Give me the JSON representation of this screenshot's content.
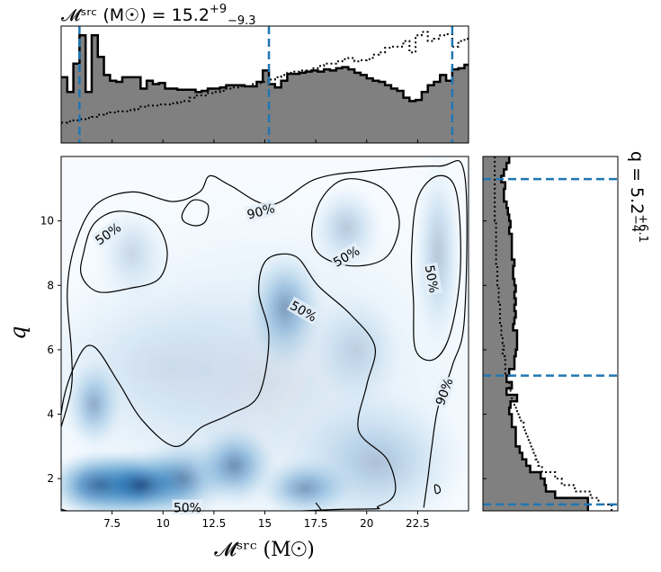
{
  "chart_data": [
    {
      "panel": "top-marginal",
      "type": "area",
      "title_text": "𝓜ˢʳᶜ (M☉) = 15.2",
      "title_sup": "+9",
      "title_sub": "−9.3",
      "xlim": [
        5.0,
        25.0
      ],
      "x_edges": [
        5.0,
        5.3,
        5.6,
        5.9,
        6.2,
        6.5,
        6.8,
        7.1,
        7.4,
        7.7,
        8.0,
        8.3,
        8.6,
        8.9,
        9.2,
        9.5,
        9.8,
        10.1,
        10.4,
        10.7,
        11.0,
        11.3,
        11.6,
        11.9,
        12.2,
        12.5,
        12.8,
        13.1,
        13.4,
        13.7,
        14.0,
        14.3,
        14.6,
        14.9,
        15.2,
        15.5,
        15.8,
        16.1,
        16.4,
        16.7,
        17.0,
        17.3,
        17.6,
        17.9,
        18.2,
        18.5,
        18.8,
        19.1,
        19.4,
        19.7,
        20.0,
        20.3,
        20.6,
        20.9,
        21.2,
        21.5,
        21.8,
        22.1,
        22.4,
        22.7,
        23.0,
        23.3,
        23.6,
        23.9,
        24.2,
        24.5,
        24.8,
        25.0
      ],
      "posterior": [
        0.58,
        0.45,
        0.7,
        0.95,
        0.45,
        0.95,
        0.76,
        0.6,
        0.55,
        0.54,
        0.58,
        0.58,
        0.58,
        0.48,
        0.55,
        0.52,
        0.53,
        0.48,
        0.48,
        0.47,
        0.47,
        0.47,
        0.45,
        0.46,
        0.48,
        0.48,
        0.49,
        0.51,
        0.51,
        0.51,
        0.5,
        0.5,
        0.54,
        0.64,
        0.52,
        0.49,
        0.55,
        0.61,
        0.61,
        0.62,
        0.63,
        0.64,
        0.63,
        0.65,
        0.64,
        0.66,
        0.67,
        0.65,
        0.62,
        0.6,
        0.57,
        0.55,
        0.54,
        0.51,
        0.48,
        0.46,
        0.4,
        0.37,
        0.38,
        0.45,
        0.51,
        0.54,
        0.6,
        0.55,
        0.65,
        0.66,
        0.69
      ],
      "prior": [
        0.18,
        0.19,
        0.2,
        0.21,
        0.22,
        0.23,
        0.25,
        0.26,
        0.27,
        0.28,
        0.28,
        0.29,
        0.3,
        0.32,
        0.33,
        0.33,
        0.34,
        0.34,
        0.35,
        0.36,
        0.37,
        0.4,
        0.42,
        0.42,
        0.44,
        0.45,
        0.46,
        0.48,
        0.49,
        0.5,
        0.5,
        0.52,
        0.53,
        0.54,
        0.56,
        0.58,
        0.6,
        0.62,
        0.63,
        0.64,
        0.64,
        0.66,
        0.68,
        0.7,
        0.7,
        0.72,
        0.74,
        0.75,
        0.72,
        0.73,
        0.74,
        0.78,
        0.8,
        0.84,
        0.85,
        0.85,
        0.9,
        0.8,
        0.95,
        0.98,
        0.9,
        0.92,
        0.95,
        0.96,
        0.85,
        0.9,
        0.92
      ],
      "quantile_lines": [
        5.9,
        15.2,
        24.2
      ],
      "xticks": [
        7.5,
        10.0,
        12.5,
        15.0,
        17.5,
        20.0,
        22.5
      ]
    },
    {
      "panel": "joint-density",
      "type": "heatmap",
      "colormap": "Blues",
      "xlim": [
        5.0,
        25.0
      ],
      "ylim": [
        1.0,
        12.0
      ],
      "xlabel": "𝓜ˢʳᶜ (M☉)",
      "ylabel": "q",
      "xticks": [
        7.5,
        10.0,
        12.5,
        15.0,
        17.5,
        20.0,
        22.5
      ],
      "yticks": [
        2,
        4,
        6,
        8,
        10
      ],
      "density_peaks": [
        {
          "x": 7.0,
          "y": 1.8,
          "w": 1.8,
          "h": 0.7,
          "a": 1.0
        },
        {
          "x": 9.0,
          "y": 1.8,
          "w": 1.9,
          "h": 0.7,
          "a": 1.0
        },
        {
          "x": 11.0,
          "y": 2.0,
          "w": 1.5,
          "h": 0.8,
          "a": 0.55
        },
        {
          "x": 13.5,
          "y": 2.4,
          "w": 1.3,
          "h": 0.8,
          "a": 0.6
        },
        {
          "x": 17.0,
          "y": 1.7,
          "w": 1.5,
          "h": 0.6,
          "a": 0.55
        },
        {
          "x": 6.6,
          "y": 4.3,
          "w": 0.9,
          "h": 0.9,
          "a": 0.45
        },
        {
          "x": 16.0,
          "y": 7.3,
          "w": 1.2,
          "h": 1.2,
          "a": 0.5
        },
        {
          "x": 19.5,
          "y": 6.0,
          "w": 1.5,
          "h": 1.2,
          "a": 0.2
        },
        {
          "x": 19.0,
          "y": 9.8,
          "w": 1.2,
          "h": 0.9,
          "a": 0.28
        },
        {
          "x": 23.5,
          "y": 9.0,
          "w": 0.8,
          "h": 2.0,
          "a": 0.3
        },
        {
          "x": 8.5,
          "y": 9.0,
          "w": 1.2,
          "h": 1.0,
          "a": 0.2
        },
        {
          "x": 20.5,
          "y": 2.5,
          "w": 3.0,
          "h": 1.5,
          "a": 0.3
        },
        {
          "x": 10.0,
          "y": 5.5,
          "w": 5.0,
          "h": 2.0,
          "a": 0.12
        },
        {
          "x": 15.0,
          "y": 5.0,
          "w": 8.0,
          "h": 4.0,
          "a": 0.14
        }
      ],
      "contours": [
        {
          "level": "90%",
          "label_positions": [
            [
              14.8,
              10.3
            ],
            [
              23.8,
              4.7
            ]
          ],
          "paths": [
            [
              [
                5.0,
                3.6
              ],
              [
                5.5,
                4.8
              ],
              [
                5.5,
                6.0
              ],
              [
                5.3,
                7.8
              ],
              [
                5.7,
                9.3
              ],
              [
                6.7,
                10.5
              ],
              [
                8.5,
                10.9
              ],
              [
                10.5,
                10.6
              ],
              [
                11.8,
                10.9
              ],
              [
                12.3,
                11.4
              ],
              [
                13.3,
                11.1
              ],
              [
                15.3,
                10.5
              ],
              [
                17.5,
                11.3
              ],
              [
                20.0,
                11.55
              ],
              [
                23.5,
                11.7
              ],
              [
                24.8,
                11.45
              ],
              [
                24.8,
                7.0
              ],
              [
                24.2,
                5.5
              ],
              [
                23.5,
                4.2
              ],
              [
                23.2,
                3.0
              ],
              [
                23.0,
                2.0
              ],
              [
                22.8,
                1.1
              ]
            ],
            [
              [
                17.8,
                1.0
              ],
              [
                17.5,
                1.25
              ]
            ]
          ],
          "closed": [
            [
              [
                11.0,
                10.3
              ],
              [
                11.5,
                10.65
              ],
              [
                12.2,
                10.5
              ],
              [
                12.1,
                10.0
              ],
              [
                11.6,
                9.85
              ],
              [
                11.0,
                10.0
              ]
            ],
            [
              [
                23.35,
                1.8
              ],
              [
                23.55,
                1.75
              ],
              [
                23.6,
                1.6
              ],
              [
                23.4,
                1.55
              ]
            ]
          ]
        },
        {
          "level": "50%",
          "label_positions": [
            [
              7.3,
              9.6
            ],
            [
              19.0,
              8.9
            ],
            [
              16.9,
              7.2
            ],
            [
              23.2,
              8.2
            ],
            [
              11.2,
              1.1
            ]
          ],
          "closed": [
            [
              [
                6.1,
                9.0
              ],
              [
                6.6,
                9.9
              ],
              [
                7.8,
                10.3
              ],
              [
                9.5,
                10.0
              ],
              [
                10.2,
                9.1
              ],
              [
                9.8,
                8.2
              ],
              [
                8.3,
                7.9
              ],
              [
                6.8,
                7.8
              ],
              [
                6.0,
                8.3
              ]
            ],
            [
              [
                17.3,
                9.6
              ],
              [
                17.8,
                10.7
              ],
              [
                19.0,
                11.3
              ],
              [
                20.8,
                11.0
              ],
              [
                21.6,
                10.0
              ],
              [
                21.0,
                8.9
              ],
              [
                19.4,
                8.6
              ],
              [
                17.8,
                8.9
              ]
            ],
            [
              [
                22.2,
                9.0
              ],
              [
                22.5,
                10.7
              ],
              [
                23.5,
                11.4
              ],
              [
                24.4,
                10.9
              ],
              [
                24.6,
                8.5
              ],
              [
                24.1,
                6.5
              ],
              [
                23.3,
                5.7
              ],
              [
                22.4,
                6.0
              ],
              [
                22.3,
                7.5
              ]
            ],
            [
              [
                5.0,
                4.0
              ],
              [
                5.8,
                5.7
              ],
              [
                6.6,
                6.1
              ],
              [
                7.8,
                5.0
              ],
              [
                9.0,
                3.8
              ],
              [
                10.6,
                3.0
              ],
              [
                11.9,
                3.6
              ],
              [
                13.3,
                4.0
              ],
              [
                14.7,
                4.6
              ],
              [
                15.2,
                6.4
              ],
              [
                14.7,
                7.8
              ],
              [
                15.1,
                8.8
              ],
              [
                16.5,
                8.9
              ],
              [
                17.6,
                8.0
              ],
              [
                19.2,
                7.1
              ],
              [
                20.4,
                6.1
              ],
              [
                20.0,
                4.9
              ],
              [
                19.6,
                3.5
              ],
              [
                21.0,
                2.6
              ],
              [
                21.4,
                1.6
              ],
              [
                20.6,
                1.15
              ],
              [
                19.0,
                1.05
              ],
              [
                5.0,
                1.05
              ]
            ]
          ]
        }
      ]
    },
    {
      "panel": "right-marginal",
      "type": "area",
      "title_text": "q = 5.2",
      "title_sup": "+6.1",
      "title_sub": "−4",
      "ylim": [
        1.0,
        12.0
      ],
      "y_edges": [
        1.0,
        1.2,
        1.4,
        1.6,
        1.8,
        2.0,
        2.2,
        2.4,
        2.6,
        2.8,
        3.0,
        3.2,
        3.4,
        3.6,
        3.8,
        4.0,
        4.2,
        4.4,
        4.6,
        4.8,
        5.0,
        5.2,
        5.4,
        5.6,
        5.8,
        6.0,
        6.2,
        6.4,
        6.6,
        6.8,
        7.0,
        7.2,
        7.4,
        7.6,
        7.8,
        8.0,
        8.2,
        8.4,
        8.6,
        8.8,
        9.0,
        9.2,
        9.4,
        9.6,
        9.8,
        10.0,
        10.2,
        10.4,
        10.6,
        10.8,
        11.0,
        11.2,
        11.4,
        11.6,
        11.8,
        12.0
      ],
      "posterior": [
        0.8,
        0.8,
        0.55,
        0.48,
        0.47,
        0.44,
        0.36,
        0.33,
        0.3,
        0.28,
        0.25,
        0.25,
        0.25,
        0.22,
        0.22,
        0.2,
        0.21,
        0.26,
        0.18,
        0.22,
        0.18,
        0.2,
        0.24,
        0.24,
        0.25,
        0.26,
        0.26,
        0.26,
        0.23,
        0.24,
        0.25,
        0.24,
        0.25,
        0.24,
        0.25,
        0.24,
        0.23,
        0.23,
        0.24,
        0.22,
        0.22,
        0.22,
        0.22,
        0.2,
        0.21,
        0.2,
        0.19,
        0.18,
        0.16,
        0.16,
        0.17,
        0.14,
        0.16,
        0.18,
        0.2
      ],
      "prior": [
        0.98,
        0.88,
        0.82,
        0.7,
        0.6,
        0.55,
        0.45,
        0.42,
        0.4,
        0.38,
        0.36,
        0.34,
        0.32,
        0.31,
        0.28,
        0.26,
        0.24,
        0.22,
        0.21,
        0.2,
        0.18,
        0.17,
        0.17,
        0.17,
        0.15,
        0.16,
        0.15,
        0.14,
        0.14,
        0.13,
        0.13,
        0.13,
        0.12,
        0.12,
        0.12,
        0.11,
        0.11,
        0.11,
        0.1,
        0.1,
        0.1,
        0.1,
        0.1,
        0.1,
        0.1,
        0.09,
        0.09,
        0.09,
        0.09,
        0.09,
        0.09,
        0.09,
        0.09,
        0.09,
        0.09
      ],
      "quantile_lines": [
        1.2,
        5.2,
        11.3
      ]
    }
  ]
}
